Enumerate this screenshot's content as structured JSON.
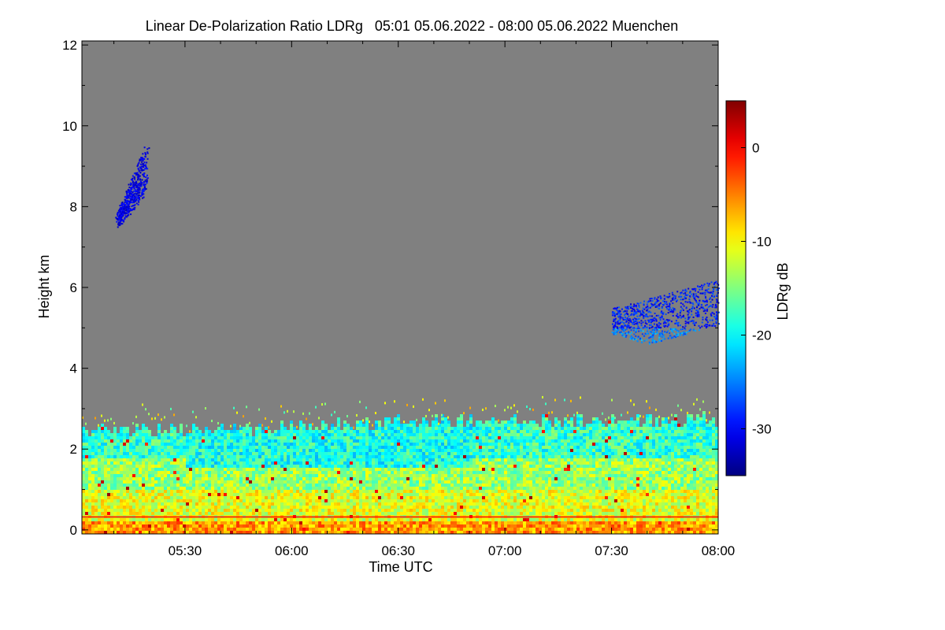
{
  "chart_data": {
    "type": "heatmap",
    "title": "Linear De-Polarization Ratio LDRg   05:01 05.06.2022 - 08:00 05.06.2022 Muenchen",
    "xlabel": "Time UTC",
    "ylabel": "Height km",
    "x_range_minutes": [
      301,
      480
    ],
    "x_ticks": [
      {
        "label": "05:30",
        "value": 330
      },
      {
        "label": "06:00",
        "value": 360
      },
      {
        "label": "06:30",
        "value": 390
      },
      {
        "label": "07:00",
        "value": 420
      },
      {
        "label": "07:30",
        "value": 450
      },
      {
        "label": "08:00",
        "value": 480
      }
    ],
    "ylim": [
      -0.1,
      12.1
    ],
    "y_ticks": [
      {
        "label": "0",
        "value": 0
      },
      {
        "label": "2",
        "value": 2
      },
      {
        "label": "4",
        "value": 4
      },
      {
        "label": "6",
        "value": 6
      },
      {
        "label": "8",
        "value": 8
      },
      {
        "label": "10",
        "value": 10
      },
      {
        "label": "12",
        "value": 12
      }
    ],
    "background_color": "#808080",
    "colorbar": {
      "label": "LDRg dB",
      "range": [
        -35,
        5
      ],
      "ticks": [
        {
          "label": "0",
          "value": 0
        },
        {
          "label": "-10",
          "value": -10
        },
        {
          "label": "-20",
          "value": -20
        },
        {
          "label": "-30",
          "value": -30
        }
      ],
      "colormap": "jet"
    },
    "features": [
      {
        "name": "aerosol-boundary-layer",
        "t_start": 301,
        "t_end": 480,
        "h_bottom": 0.0,
        "h_top_values": [
          2.5,
          2.5,
          2.6,
          2.7,
          2.8,
          2.75,
          2.8
        ],
        "ldr_range": [
          -22,
          -8
        ]
      },
      {
        "name": "upper-cirrus-cloud",
        "t_start": 311,
        "t_end": 319,
        "h_bottom": 7.4,
        "h_top": 9.1,
        "ldr_mean": -31
      },
      {
        "name": "mid-level-cloud",
        "t_start": 450,
        "t_end": 480,
        "h_bottom": 4.6,
        "h_top": 6.2,
        "ldr_mean": -29
      }
    ]
  }
}
